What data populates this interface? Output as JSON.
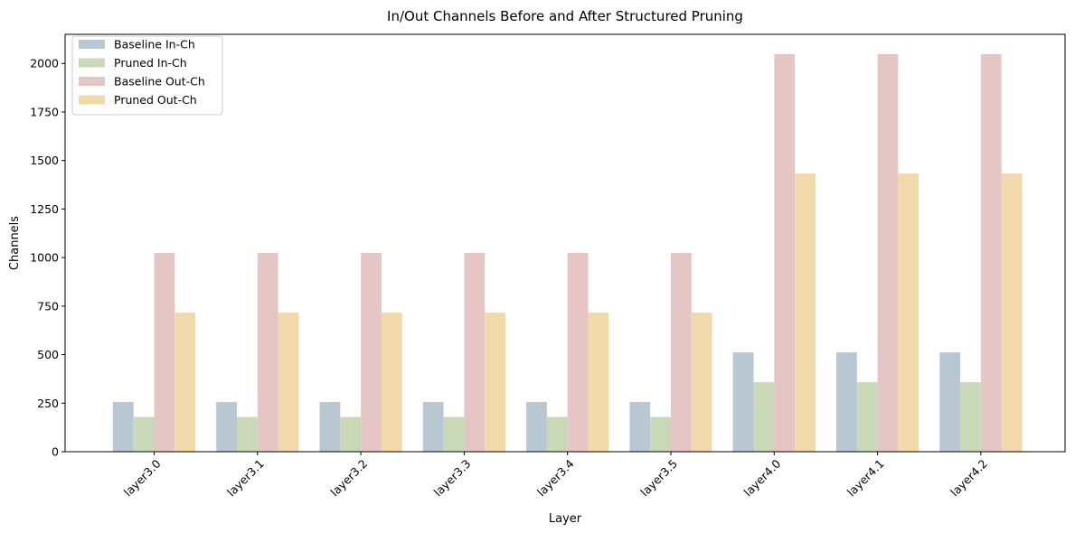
{
  "chart_data": {
    "type": "bar",
    "title": "In/Out Channels Before and After Structured Pruning",
    "xlabel": "Layer",
    "ylabel": "Channels",
    "categories": [
      "layer3.0",
      "layer3.1",
      "layer3.2",
      "layer3.3",
      "layer3.4",
      "layer3.5",
      "layer4.0",
      "layer4.1",
      "layer4.2"
    ],
    "ylim": [
      0,
      2150
    ],
    "yticks": [
      0,
      250,
      500,
      750,
      1000,
      1250,
      1500,
      1750,
      2000
    ],
    "grid": false,
    "legend_position": "top-left",
    "series": [
      {
        "name": "Baseline In-Ch",
        "color": "#b8c7d2",
        "values": [
          256,
          256,
          256,
          256,
          256,
          256,
          512,
          512,
          512
        ]
      },
      {
        "name": "Pruned In-Ch",
        "color": "#c9d9b8",
        "values": [
          179,
          179,
          179,
          179,
          179,
          179,
          358,
          358,
          358
        ]
      },
      {
        "name": "Baseline Out-Ch",
        "color": "#e6c6c5",
        "values": [
          1024,
          1024,
          1024,
          1024,
          1024,
          1024,
          2048,
          2048,
          2048
        ]
      },
      {
        "name": "Pruned Out-Ch",
        "color": "#f2d9ac",
        "values": [
          716,
          716,
          716,
          716,
          716,
          716,
          1433,
          1433,
          1433
        ]
      }
    ]
  }
}
